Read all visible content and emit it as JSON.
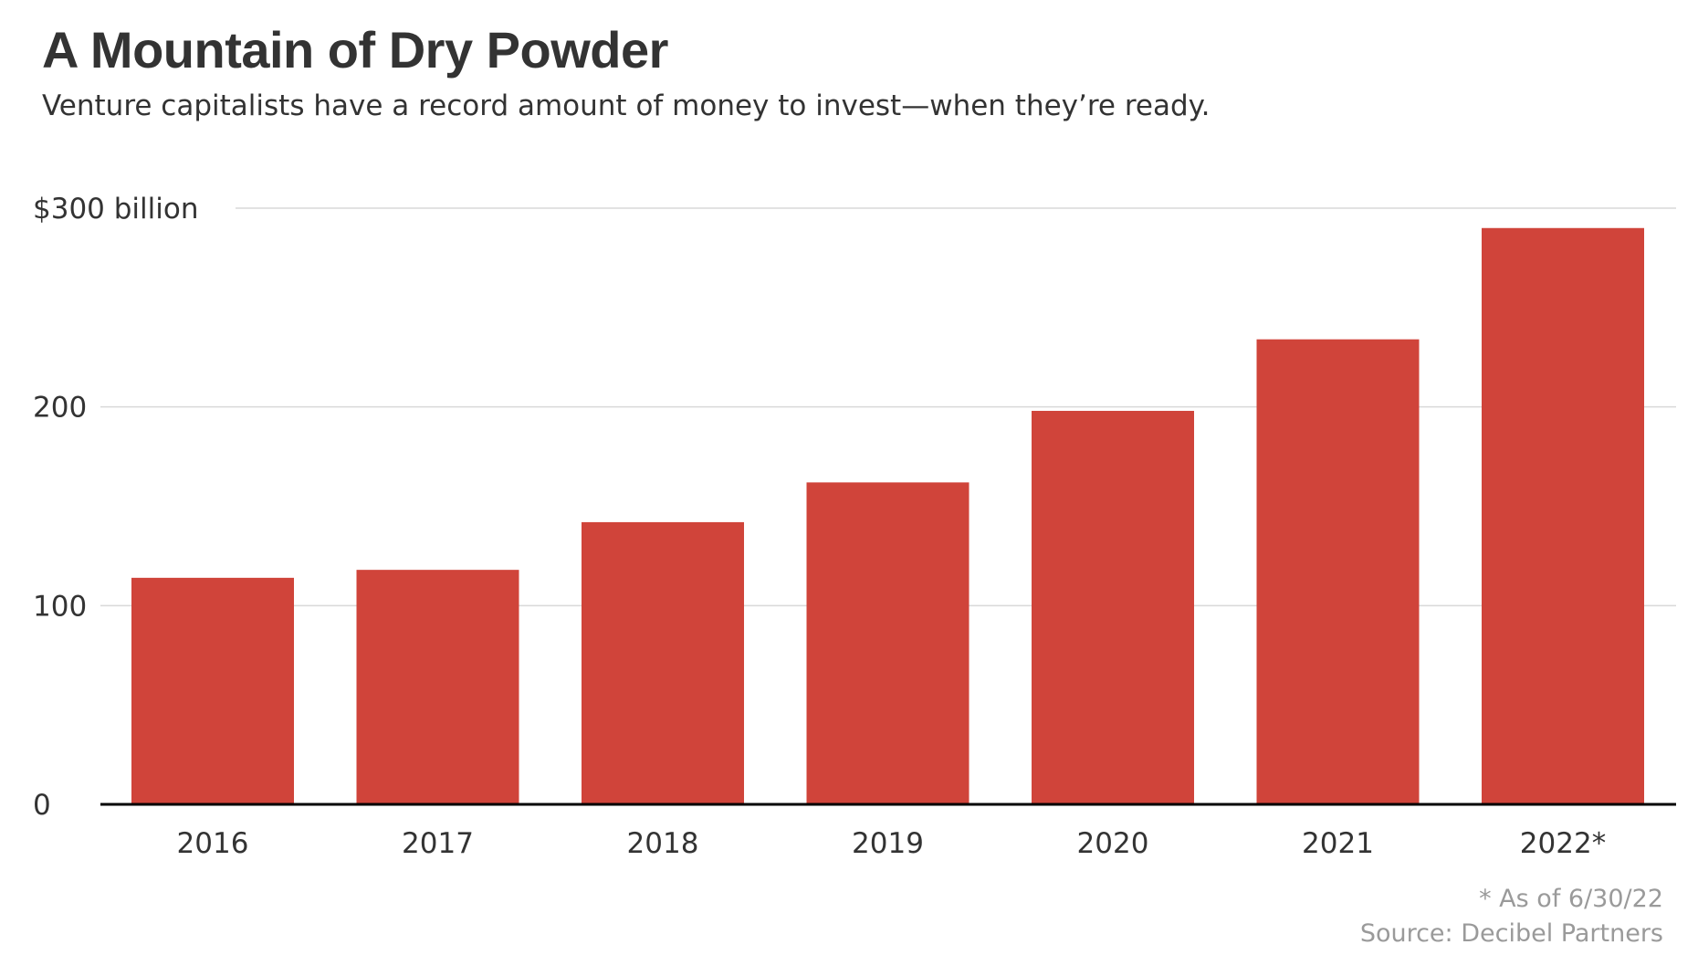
{
  "title": "A Mountain of Dry Powder",
  "subtitle": "Venture capitalists have a record amount of money to invest—when they’re ready.",
  "footnote": "* As of 6/30/22",
  "source": "Source: Decibel Partners",
  "colors": {
    "bar": "#d0443a",
    "gridline": "#d9d9d9",
    "baseline": "#000000",
    "text": "#333333",
    "notes": "#9a9a9a"
  },
  "chart_data": {
    "type": "bar",
    "title": "A Mountain of Dry Powder",
    "subtitle": "Venture capitalists have a record amount of money to invest—when they’re ready.",
    "categories": [
      "2016",
      "2017",
      "2018",
      "2019",
      "2020",
      "2021",
      "2022*"
    ],
    "values": [
      114,
      118,
      142,
      162,
      198,
      234,
      290
    ],
    "xlabel": "",
    "ylabel": "",
    "ylim": [
      0,
      300
    ],
    "yticks": [
      {
        "value": 0,
        "label": "0"
      },
      {
        "value": 100,
        "label": "100"
      },
      {
        "value": 200,
        "label": "200"
      },
      {
        "value": 300,
        "label": "$300 billion"
      }
    ],
    "grid": true,
    "legend": "none"
  }
}
